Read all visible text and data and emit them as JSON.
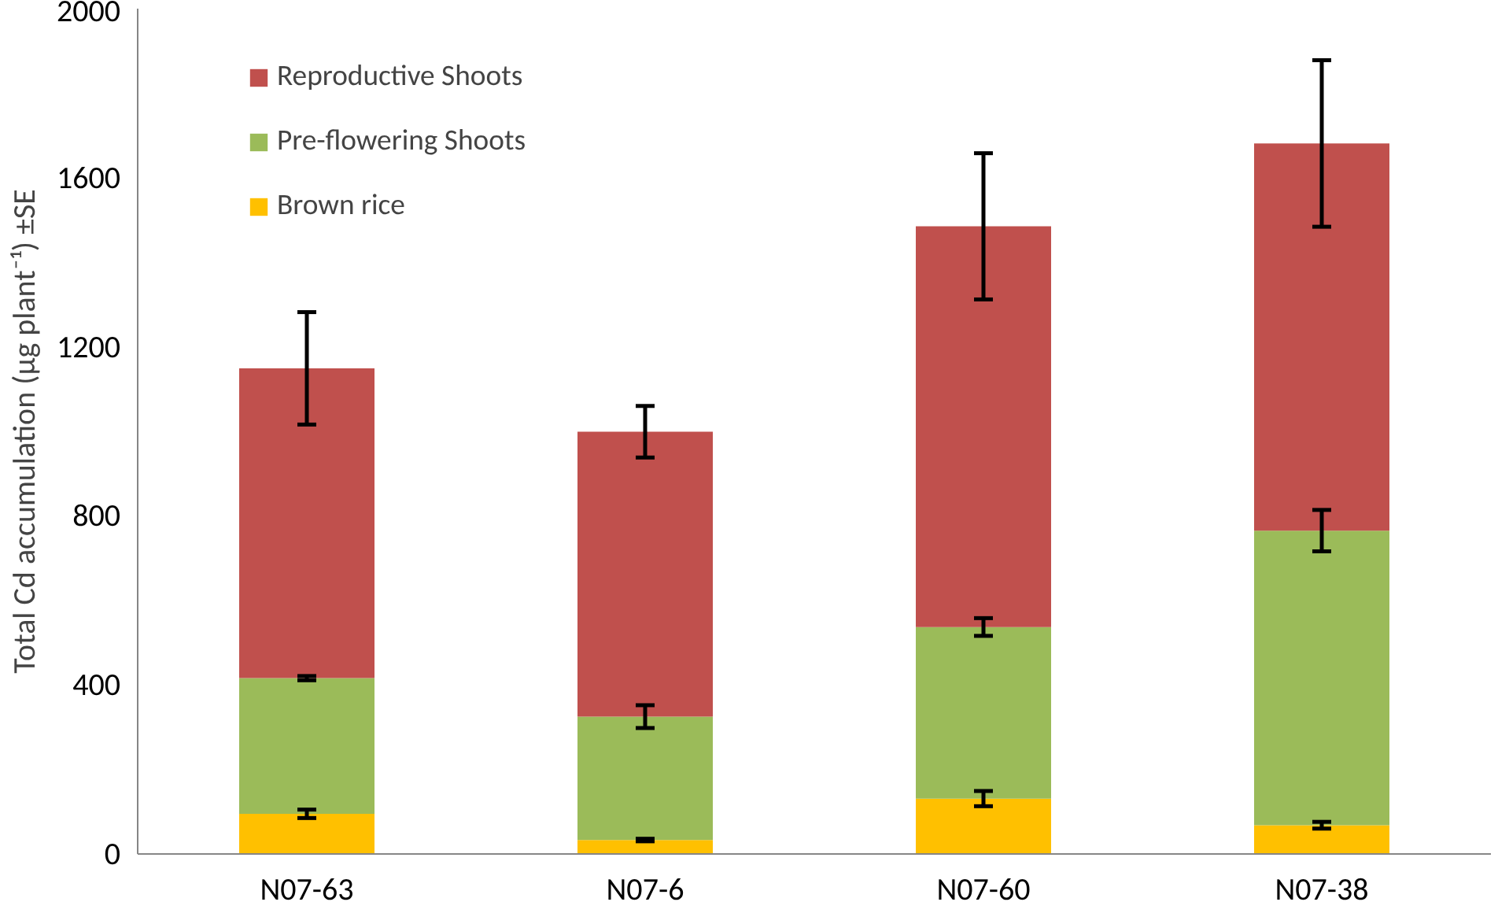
{
  "chart_data": {
    "type": "bar",
    "stacked": true,
    "ylabel": "Total Cd accumulation (µg plant⁻¹) ±SE",
    "categories": [
      "N07-63",
      "N07-6",
      "N07-60",
      "N07-38"
    ],
    "series": [
      {
        "name": "Brown rice",
        "color": "#ffc000",
        "values": [
          95,
          33,
          131,
          68
        ],
        "errors": [
          10,
          3,
          18,
          8
        ]
      },
      {
        "name": "Pre-flowering Shoots",
        "color": "#9bbb59",
        "values": [
          321,
          292,
          406,
          697
        ],
        "errors": [
          5,
          27,
          21,
          49
        ]
      },
      {
        "name": "Reproductive Shoots",
        "color": "#c0504d",
        "values": [
          733,
          674,
          948,
          916
        ],
        "errors": [
          133,
          61,
          173,
          197
        ]
      }
    ],
    "ylim": [
      0,
      2000
    ],
    "yticks": [
      0,
      400,
      800,
      1200,
      1600,
      2000
    ],
    "grid": false,
    "legend": "top left"
  }
}
